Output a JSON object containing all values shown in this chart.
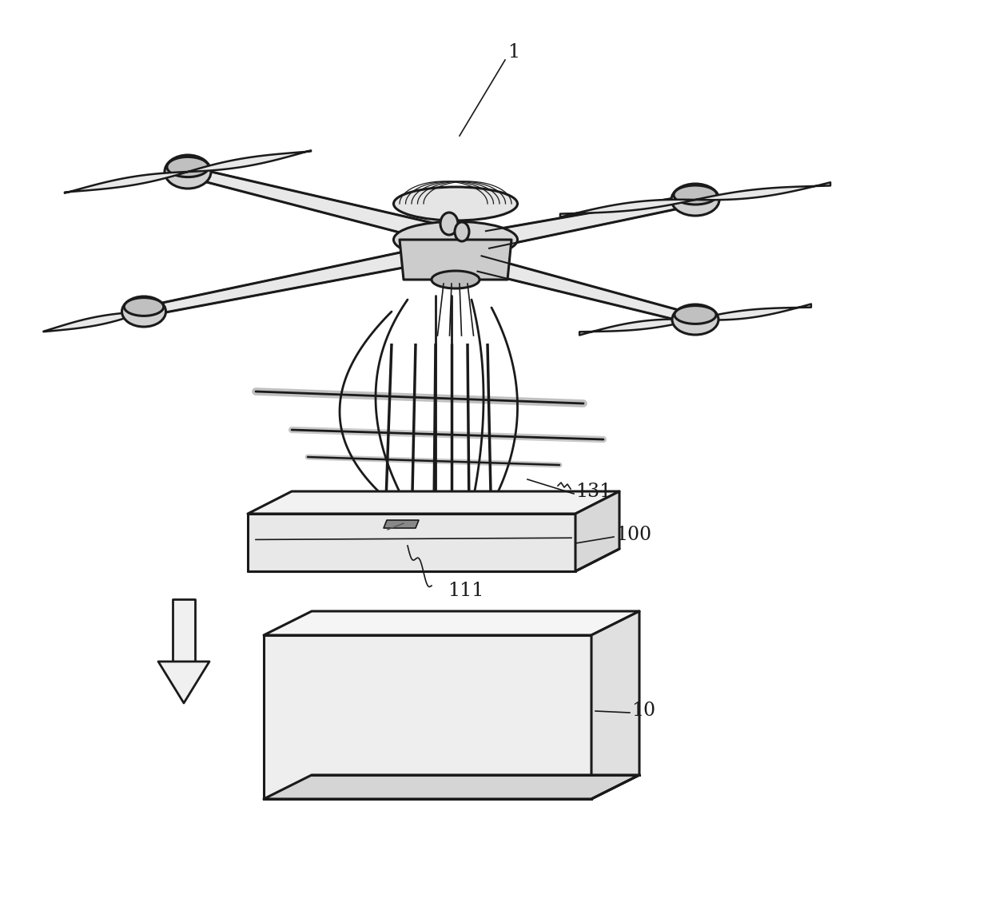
{
  "background_color": "#ffffff",
  "line_color": "#1a1a1a",
  "label_color": "#1a1a1a",
  "labels": {
    "drone": "1",
    "guide_rods": "131",
    "carrier": "100",
    "slot": "111",
    "package": "10"
  },
  "figsize": [
    12.4,
    11.39
  ],
  "dpi": 100,
  "lw_main": 2.2,
  "lw_arm": 8.0,
  "lw_prop": 2.0,
  "lw_thin": 1.3,
  "lw_label": 1.0,
  "label_fontsize": 17
}
